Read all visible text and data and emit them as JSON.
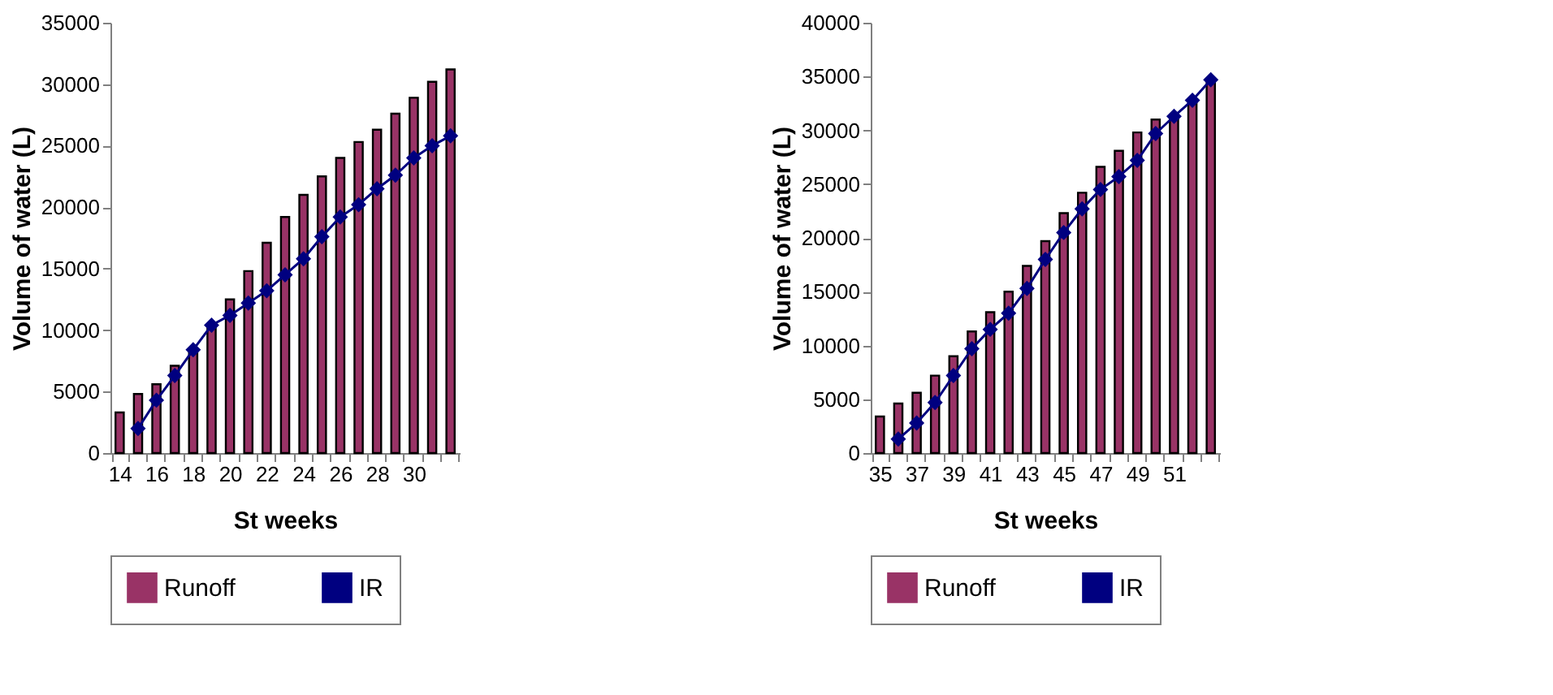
{
  "chart_data": [
    {
      "type": "bar",
      "xlabel": "St weeks",
      "ylabel": "Volume of water (L)",
      "legend": "bottom",
      "marker": "diamond",
      "categories": [
        "14",
        null,
        "16",
        null,
        "18",
        null,
        "20",
        null,
        "22",
        null,
        "24",
        null,
        "26",
        null,
        "28",
        null,
        "30",
        null,
        null
      ],
      "series": [
        {
          "name": "Runoff",
          "color": "#993366",
          "values": [
            3300,
            4800,
            5600,
            7100,
            8400,
            10400,
            12500,
            14800,
            17100,
            19200,
            21000,
            22500,
            24000,
            25300,
            26300,
            27600,
            28900,
            30200,
            31200
          ]
        },
        {
          "name": "IR",
          "type": "line",
          "color": "#000080",
          "values": [
            null,
            2000,
            4300,
            6300,
            8400,
            10400,
            11200,
            12200,
            13200,
            14500,
            15800,
            17600,
            19200,
            20200,
            21500,
            22600,
            24000,
            25000,
            25800
          ]
        }
      ],
      "ylim": [
        0,
        35000
      ],
      "yticks": [
        0,
        5000,
        10000,
        15000,
        20000,
        25000,
        30000,
        35000
      ]
    },
    {
      "type": "bar",
      "xlabel": "St weeks",
      "ylabel": "Volume of water (L)",
      "legend": "bottom",
      "marker": "diamond",
      "categories": [
        "35",
        null,
        "37",
        null,
        "39",
        null,
        "41",
        null,
        "43",
        null,
        "45",
        null,
        "47",
        null,
        "49",
        null,
        "51",
        null,
        null
      ],
      "series": [
        {
          "name": "Runoff",
          "color": "#993366",
          "values": [
            3400,
            4600,
            5600,
            7200,
            9000,
            11300,
            13100,
            15000,
            17400,
            19700,
            22300,
            24200,
            26600,
            28100,
            29800,
            31000,
            31300,
            32800,
            34500
          ]
        },
        {
          "name": "IR",
          "type": "line",
          "color": "#000080",
          "values": [
            null,
            1300,
            2800,
            4700,
            7200,
            9700,
            11500,
            13000,
            15300,
            18000,
            20500,
            22700,
            24500,
            25700,
            27200,
            29700,
            31300,
            32800,
            34700
          ]
        }
      ],
      "ylim": [
        0,
        40000
      ],
      "yticks": [
        0,
        5000,
        10000,
        15000,
        20000,
        25000,
        30000,
        35000,
        40000
      ]
    }
  ]
}
